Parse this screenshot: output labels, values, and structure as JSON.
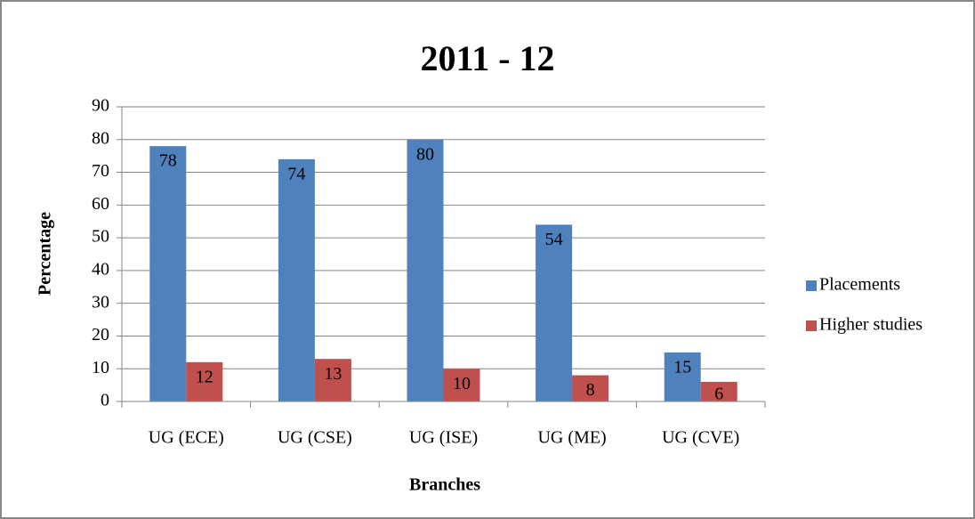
{
  "chart_data": {
    "type": "bar",
    "title": "2011 - 12",
    "x_label": "Branches",
    "y_label": "Percentage",
    "categories": [
      "UG (ECE)",
      "UG (CSE)",
      "UG (ISE)",
      "UG (ME)",
      "UG (CVE)"
    ],
    "series": [
      {
        "name": "Placements",
        "color": "#4f81bd",
        "values": [
          78,
          74,
          80,
          54,
          15
        ]
      },
      {
        "name": "Higher studies",
        "color": "#c0504d",
        "values": [
          12,
          13,
          10,
          8,
          6
        ]
      }
    ],
    "ylim": [
      0,
      90
    ],
    "yticks": [
      0,
      10,
      20,
      30,
      40,
      50,
      60,
      70,
      80,
      90
    ],
    "grid": true,
    "legend": "right"
  }
}
